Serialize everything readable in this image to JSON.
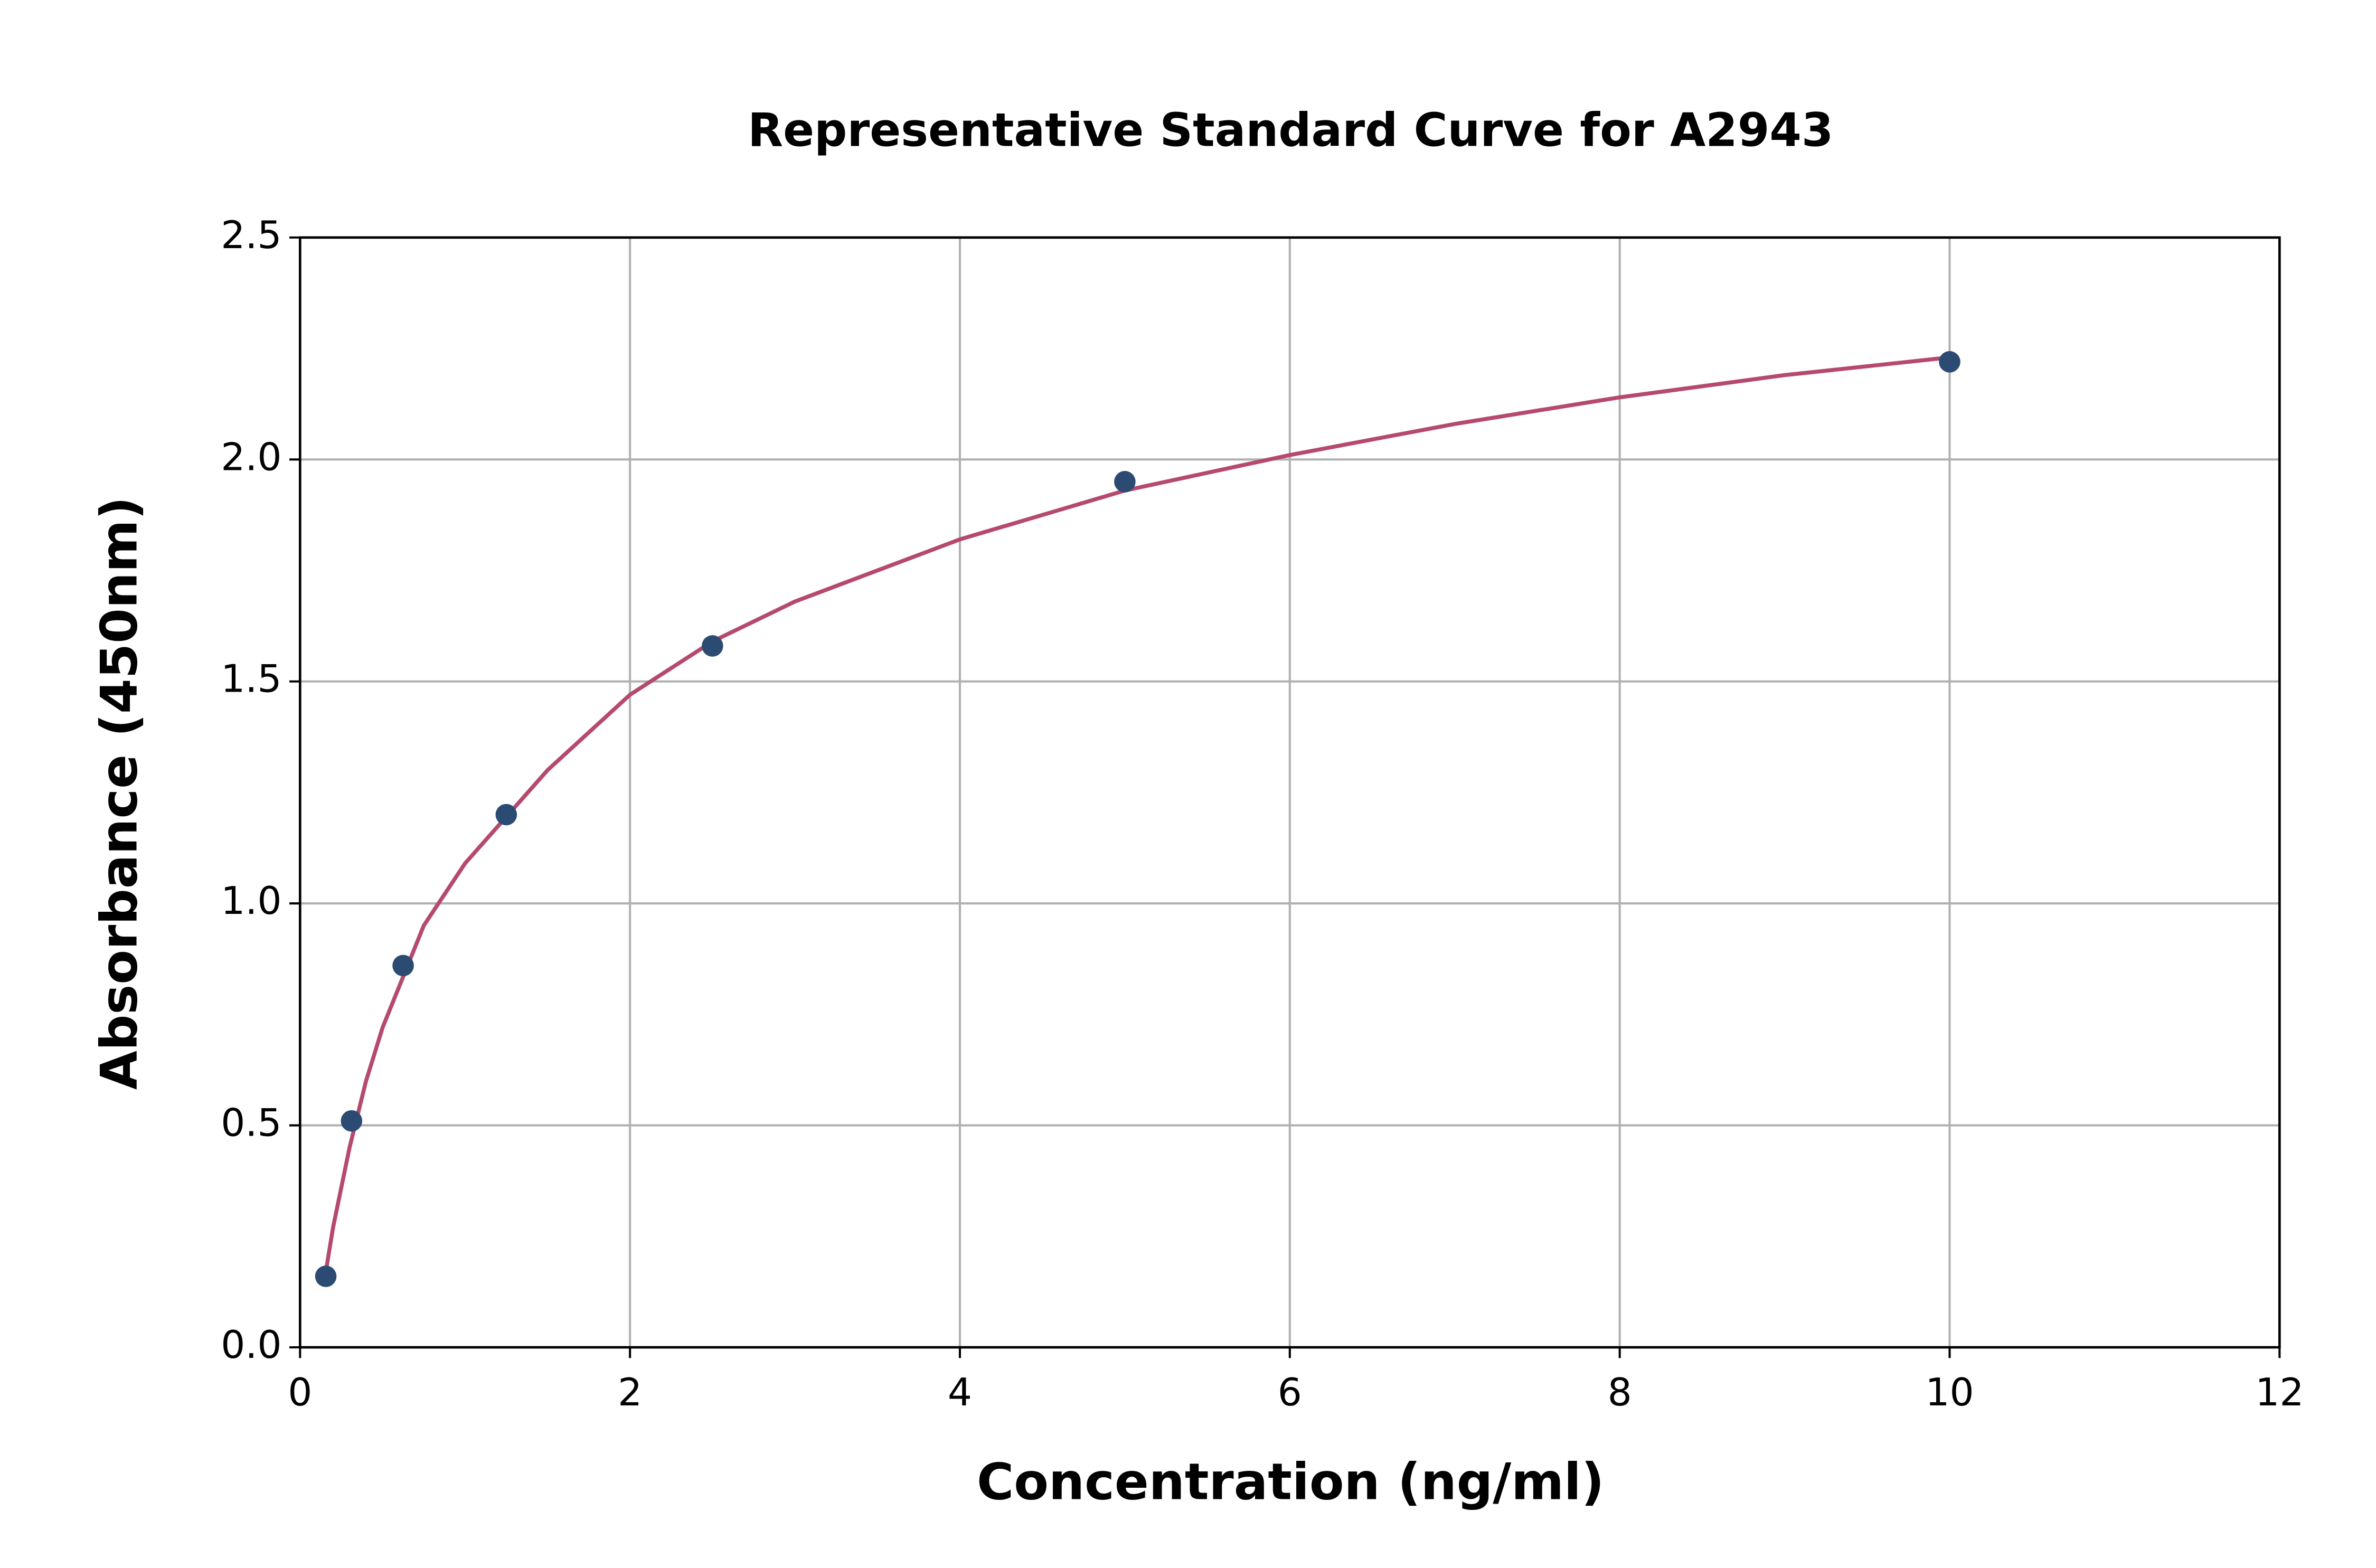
{
  "chart_data": {
    "type": "scatter",
    "title": "Representative Standard Curve for A2943",
    "x_label": "Concentration (ng/ml)",
    "y_label": "Absorbance (450nm)",
    "xlim": [
      0,
      12
    ],
    "xticks": [
      0,
      2,
      4,
      6,
      8,
      10,
      12
    ],
    "ylim": [
      0,
      2.5
    ],
    "yticks": [
      {
        "value": 0,
        "label": "0.0"
      },
      0.5,
      {
        "value": 1,
        "label": "1.0"
      },
      1.5,
      {
        "value": 2,
        "label": "2.0"
      },
      2.5
    ],
    "grid": true,
    "series": [
      {
        "mode": "markers",
        "color": "#2b4b72",
        "x": [
          0.156,
          0.312,
          0.625,
          1.25,
          2.5,
          5,
          10
        ],
        "values": [
          0.16,
          0.51,
          0.86,
          1.2,
          1.58,
          1.95,
          2.22
        ]
      },
      {
        "mode": "line",
        "color": "#b5496e",
        "x": [
          0.156,
          0.2,
          0.3,
          0.4,
          0.5,
          0.75,
          1,
          1.5,
          2,
          2.5,
          3,
          4,
          5,
          6,
          7,
          8,
          9,
          10
        ],
        "values": [
          0.17,
          0.27,
          0.45,
          0.6,
          0.72,
          0.95,
          1.09,
          1.3,
          1.47,
          1.59,
          1.68,
          1.82,
          1.93,
          2.01,
          2.08,
          2.14,
          2.19,
          2.23
        ]
      }
    ]
  }
}
